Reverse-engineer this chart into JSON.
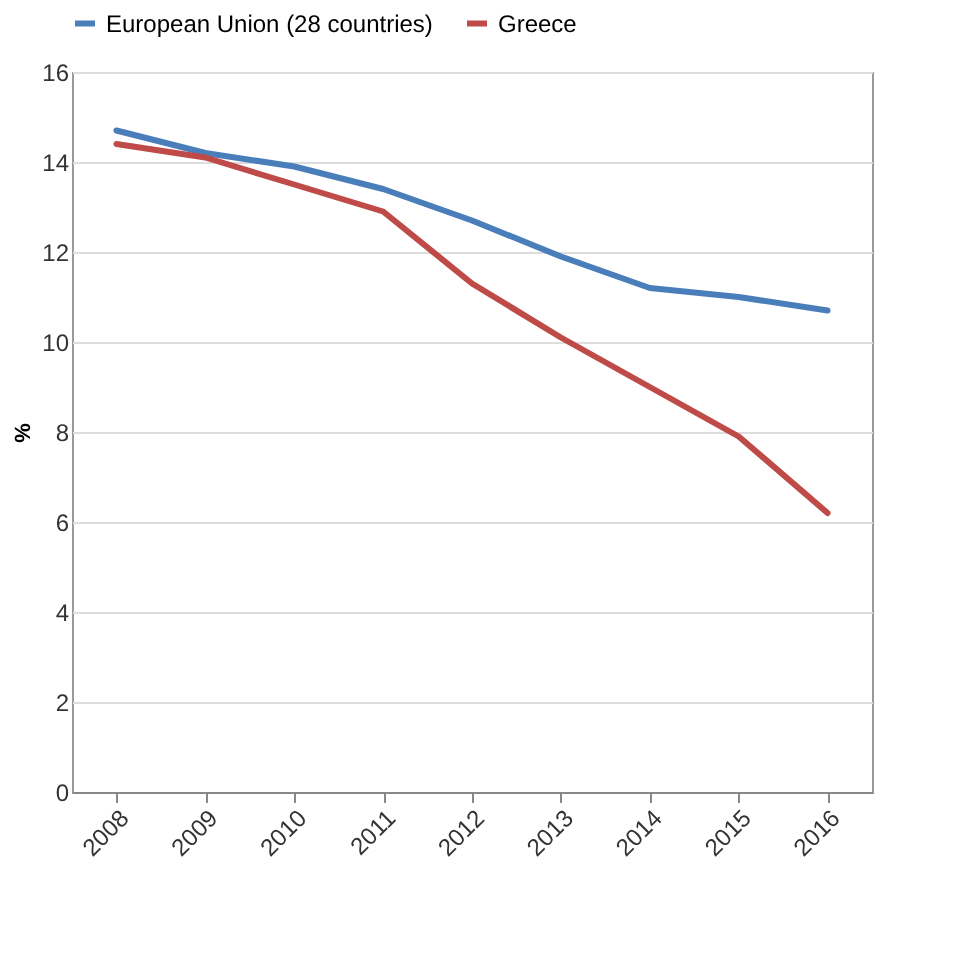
{
  "chart_data": {
    "type": "line",
    "ylabel": "%",
    "categories": [
      "2008",
      "2009",
      "2010",
      "2011",
      "2012",
      "2013",
      "2014",
      "2015",
      "2016"
    ],
    "series": [
      {
        "name": "European Union (28 countries)",
        "color": "#4a7ebb",
        "values": [
          14.7,
          14.2,
          13.9,
          13.4,
          12.7,
          11.9,
          11.2,
          11.0,
          10.7
        ]
      },
      {
        "name": "Greece",
        "color": "#be4b48",
        "values": [
          14.4,
          14.1,
          13.5,
          12.9,
          11.3,
          10.1,
          9.0,
          7.9,
          6.2
        ]
      }
    ],
    "ylim": [
      0,
      16
    ],
    "yticks": [
      0,
      2,
      4,
      6,
      8,
      10,
      12,
      14,
      16
    ],
    "grid": "y",
    "legend": "top",
    "marker": "none",
    "line_style": "solid"
  }
}
